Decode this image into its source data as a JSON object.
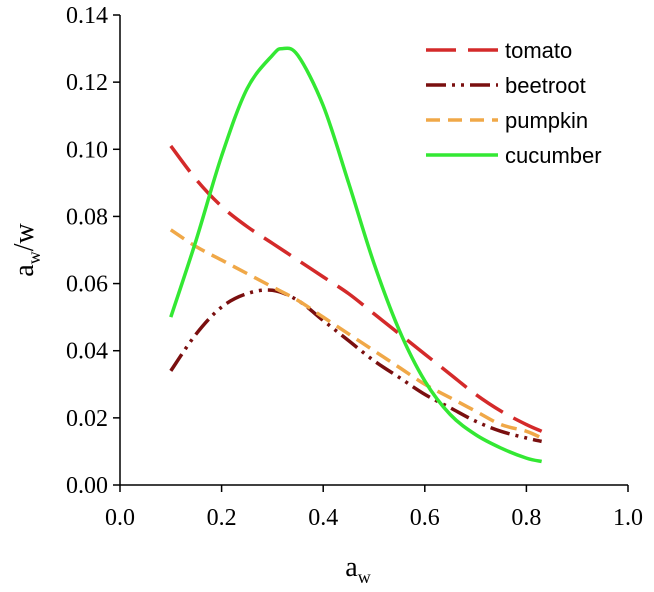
{
  "chart_data": {
    "type": "line",
    "title": "",
    "xlabel": {
      "main": "a",
      "sub": "w"
    },
    "ylabel": {
      "main": "a",
      "sub": "w",
      "suffix": "/w"
    },
    "xlim": [
      0.0,
      1.0
    ],
    "ylim": [
      0.0,
      0.14
    ],
    "x_ticks": [
      "0.0",
      "0.2",
      "0.4",
      "0.6",
      "0.8",
      "1.0"
    ],
    "y_ticks": [
      "0.00",
      "0.02",
      "0.04",
      "0.06",
      "0.08",
      "0.10",
      "0.12",
      "0.14"
    ],
    "grid": false,
    "legend_position": "top-right",
    "series": [
      {
        "name": "tomato",
        "color": "#d42a2a",
        "dash": "long-dash",
        "x": [
          0.1,
          0.15,
          0.2,
          0.25,
          0.3,
          0.35,
          0.4,
          0.45,
          0.5,
          0.55,
          0.6,
          0.65,
          0.7,
          0.75,
          0.8,
          0.83
        ],
        "y": [
          0.101,
          0.091,
          0.083,
          0.077,
          0.072,
          0.067,
          0.062,
          0.057,
          0.051,
          0.045,
          0.039,
          0.033,
          0.027,
          0.022,
          0.018,
          0.016
        ]
      },
      {
        "name": "beetroot",
        "color": "#7a0f0f",
        "dash": "dash-dot-dot",
        "x": [
          0.1,
          0.15,
          0.2,
          0.25,
          0.3,
          0.35,
          0.4,
          0.45,
          0.5,
          0.55,
          0.6,
          0.65,
          0.7,
          0.75,
          0.8,
          0.83
        ],
        "y": [
          0.034,
          0.045,
          0.053,
          0.057,
          0.058,
          0.055,
          0.049,
          0.043,
          0.037,
          0.032,
          0.027,
          0.023,
          0.019,
          0.016,
          0.014,
          0.013
        ]
      },
      {
        "name": "pumpkin",
        "color": "#f0a848",
        "dash": "dash",
        "x": [
          0.1,
          0.15,
          0.2,
          0.25,
          0.3,
          0.35,
          0.4,
          0.45,
          0.5,
          0.55,
          0.6,
          0.65,
          0.7,
          0.75,
          0.8,
          0.83
        ],
        "y": [
          0.076,
          0.071,
          0.067,
          0.063,
          0.059,
          0.055,
          0.05,
          0.045,
          0.04,
          0.035,
          0.03,
          0.026,
          0.022,
          0.018,
          0.016,
          0.014
        ]
      },
      {
        "name": "cucumber",
        "color": "#33e833",
        "dash": "solid",
        "x": [
          0.1,
          0.15,
          0.2,
          0.25,
          0.3,
          0.32,
          0.35,
          0.4,
          0.45,
          0.5,
          0.55,
          0.6,
          0.65,
          0.7,
          0.75,
          0.8,
          0.83
        ],
        "y": [
          0.05,
          0.073,
          0.098,
          0.118,
          0.128,
          0.13,
          0.128,
          0.113,
          0.09,
          0.066,
          0.046,
          0.031,
          0.021,
          0.015,
          0.011,
          0.008,
          0.007
        ]
      }
    ]
  }
}
